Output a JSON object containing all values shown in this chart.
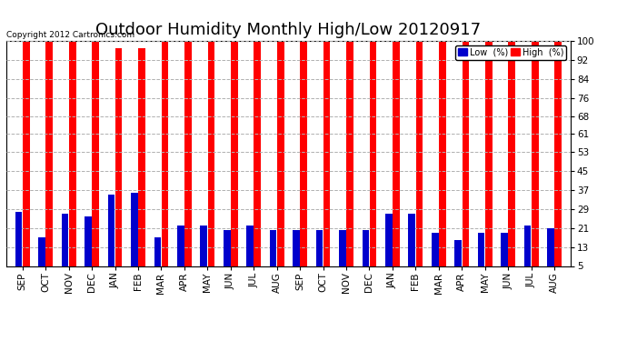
{
  "title": "Outdoor Humidity Monthly High/Low 20120917",
  "copyright": "Copyright 2012 Cartronics.com",
  "legend_low": "Low  (%)",
  "legend_high": "High  (%)",
  "months": [
    "SEP",
    "OCT",
    "NOV",
    "DEC",
    "JAN",
    "FEB",
    "MAR",
    "APR",
    "MAY",
    "JUN",
    "JUL",
    "AUG",
    "SEP",
    "OCT",
    "NOV",
    "DEC",
    "JAN",
    "FEB",
    "MAR",
    "APR",
    "MAY",
    "JUN",
    "JUL",
    "AUG"
  ],
  "high_values": [
    100,
    100,
    100,
    100,
    97,
    97,
    100,
    100,
    100,
    100,
    100,
    100,
    100,
    100,
    100,
    100,
    100,
    100,
    100,
    100,
    100,
    100,
    100,
    100
  ],
  "low_values": [
    28,
    17,
    27,
    26,
    35,
    36,
    17,
    22,
    22,
    20,
    22,
    20,
    20,
    20,
    20,
    20,
    27,
    27,
    19,
    16,
    19,
    19,
    22,
    21
  ],
  "yticks": [
    5,
    13,
    21,
    29,
    37,
    45,
    53,
    61,
    68,
    76,
    84,
    92,
    100
  ],
  "ylim": [
    5,
    100
  ],
  "high_color": "#ff0000",
  "low_color": "#0000cc",
  "bg_color": "#ffffff",
  "grid_color": "#b0b0b0",
  "title_fontsize": 13,
  "tick_fontsize": 7.5
}
